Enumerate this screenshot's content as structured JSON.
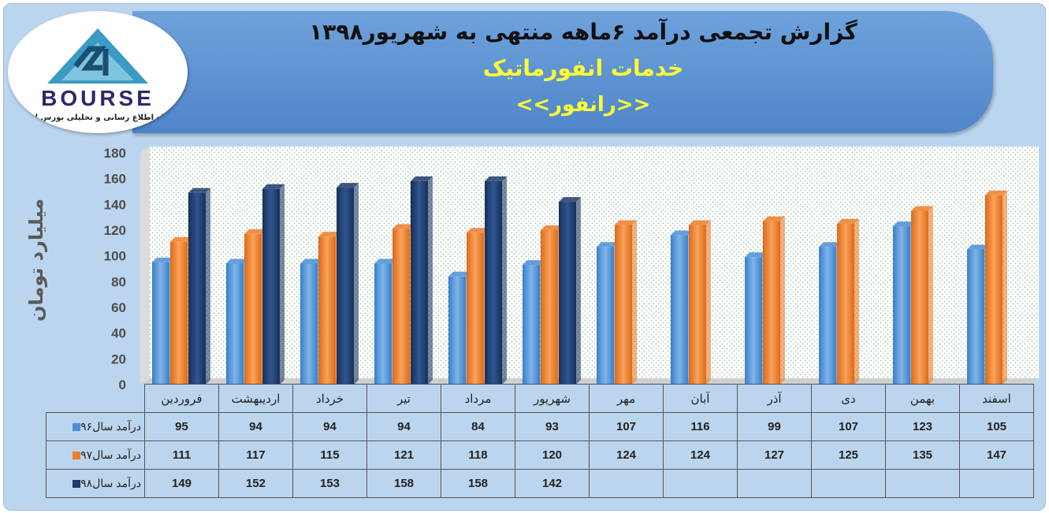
{
  "header": {
    "title_line1": "گزارش تجمعی درآمد ۶ماهه منتهی به شهریور۱۳۹۸",
    "title_line2": "خدمات انفورماتیک",
    "title_line3": "<<رانفور>>"
  },
  "logo": {
    "brand": "BOURSE",
    "subtitle": "پایگاه اطلاع رسانی و تحلیلی بورس ایران"
  },
  "colors": {
    "series96": "#4a8fd6",
    "series97": "#ee7d2b",
    "series98": "#1f3a68",
    "frame": "#bcd5ef",
    "banner": "#5b8fd0",
    "title_yellow": "#ffff33"
  },
  "chart_data": {
    "type": "bar",
    "ylabel": "میلیارد تومان",
    "ylim": [
      0,
      180
    ],
    "yticks": [
      0,
      20,
      40,
      60,
      80,
      100,
      120,
      140,
      160,
      180
    ],
    "grid": false,
    "categories": [
      "فروردین",
      "اردیبهشت",
      "خرداد",
      "تیر",
      "مرداد",
      "شهریور",
      "مهر",
      "آبان",
      "آذر",
      "دی",
      "بهمن",
      "اسفند"
    ],
    "series": [
      {
        "name": "درآمد سال۹۶",
        "values": [
          95,
          94,
          94,
          94,
          84,
          93,
          107,
          116,
          99,
          107,
          123,
          105
        ]
      },
      {
        "name": "درآمد سال۹۷",
        "values": [
          111,
          117,
          115,
          121,
          118,
          120,
          124,
          124,
          127,
          125,
          135,
          147
        ]
      },
      {
        "name": "درآمد سال۹۸",
        "values": [
          149,
          152,
          153,
          158,
          158,
          142,
          null,
          null,
          null,
          null,
          null,
          null
        ]
      }
    ]
  }
}
